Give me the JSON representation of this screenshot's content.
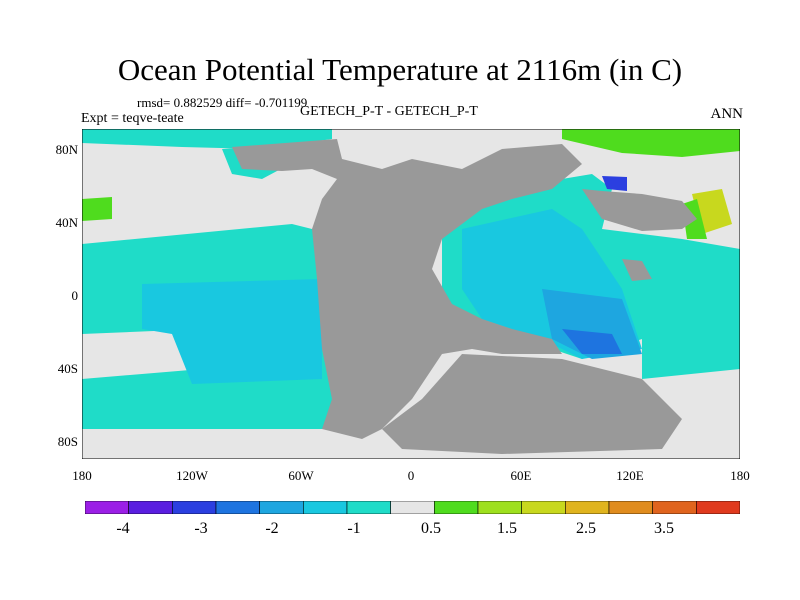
{
  "title": "Ocean Potential Temperature at 2116m (in C)",
  "stats": "rmsd= 0.882529 diff= -0.701199",
  "experiment": "Expt = teqve-teate",
  "comparison": "GETECH_P-T - GETECH_P-T",
  "season": "ANN",
  "y_ticks": [
    "80N",
    "40N",
    "0",
    "40S",
    "80S"
  ],
  "x_ticks": [
    "180",
    "120W",
    "60W",
    "0",
    "60E",
    "120E",
    "180"
  ],
  "colorbar_labels": [
    "-4",
    "-3",
    "-2",
    "-1",
    "0.5",
    "1.5",
    "2.5",
    "3.5"
  ],
  "colors": {
    "land": "#999999",
    "near_zero": "#e6e6e6",
    "bins": [
      "#9b1fe6",
      "#5a1ee0",
      "#2b3fe0",
      "#1e74e0",
      "#1ea6e0",
      "#19c8e0",
      "#1fdcc8",
      "#e6e6e6",
      "#4fdc1e",
      "#9ee01e",
      "#c8d81e",
      "#e0b41e",
      "#e08c1e",
      "#e0641e",
      "#e03a1e"
    ]
  }
}
